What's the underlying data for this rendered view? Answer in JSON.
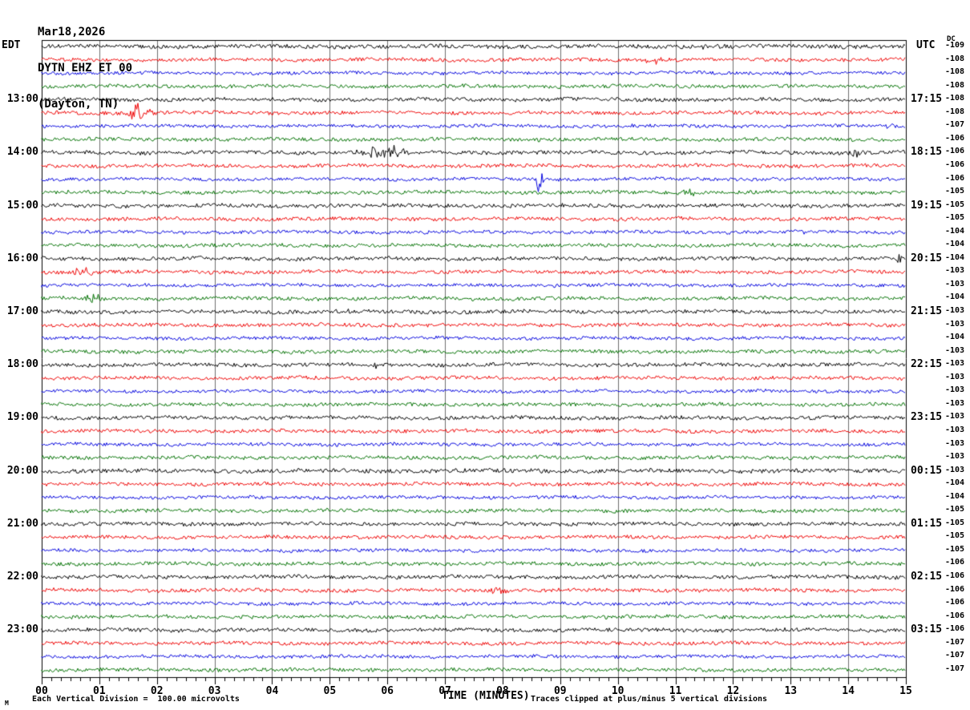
{
  "header": {
    "date": "Mar18,2026",
    "station": "DYTN EHZ ET 00",
    "location": "(Dayton, TN)"
  },
  "axes": {
    "left_tz": "EDT",
    "right_tz": "UTC",
    "dc_header": "DC",
    "xlabel": "TIME (MINUTES)",
    "x_ticks": [
      "00",
      "01",
      "02",
      "03",
      "04",
      "05",
      "06",
      "07",
      "08",
      "09",
      "10",
      "11",
      "12",
      "13",
      "14",
      "15"
    ]
  },
  "footer": {
    "scale_note": "Each Vertical Division =  100.00 microvolts",
    "clip_note": "Traces clipped at plus/minus 5 vertical divisions",
    "watermark": "M"
  },
  "colors": {
    "trace_cycle": [
      "#000000",
      "#ee0000",
      "#0000dd",
      "#007100"
    ],
    "grid": "#6e6e6e",
    "border": "#000000",
    "background": "#ffffff",
    "text": "#000000"
  },
  "chart_data": {
    "type": "line",
    "subtype": "helicorder-seismogram",
    "title": "DYTN EHZ ET 00 (Dayton, TN) Mar18,2026",
    "xlabel": "TIME (MINUTES)",
    "x_range_minutes": [
      0,
      15
    ],
    "minutes_per_row": 15,
    "rows_total": 48,
    "traces_per_hour": 4,
    "trace_color_cycle": [
      "black",
      "red",
      "blue",
      "green"
    ],
    "grid": "vertical lines at every minute",
    "left_time_labels": [
      {
        "row": 5,
        "label": "13:00"
      },
      {
        "row": 9,
        "label": "14:00"
      },
      {
        "row": 13,
        "label": "15:00"
      },
      {
        "row": 17,
        "label": "16:00"
      },
      {
        "row": 21,
        "label": "17:00"
      },
      {
        "row": 25,
        "label": "18:00"
      },
      {
        "row": 29,
        "label": "19:00"
      },
      {
        "row": 33,
        "label": "20:00"
      },
      {
        "row": 37,
        "label": "21:00"
      },
      {
        "row": 41,
        "label": "22:00"
      },
      {
        "row": 45,
        "label": "23:00"
      }
    ],
    "right_time_labels": [
      {
        "row": 5,
        "label": "17:15"
      },
      {
        "row": 9,
        "label": "18:15"
      },
      {
        "row": 13,
        "label": "19:15"
      },
      {
        "row": 17,
        "label": "20:15"
      },
      {
        "row": 21,
        "label": "21:15"
      },
      {
        "row": 25,
        "label": "22:15"
      },
      {
        "row": 29,
        "label": "23:15"
      },
      {
        "row": 33,
        "label": "00:15"
      },
      {
        "row": 37,
        "label": "01:15"
      },
      {
        "row": 41,
        "label": "02:15"
      },
      {
        "row": 45,
        "label": "03:15"
      }
    ],
    "rows": [
      {
        "dc": -109,
        "noise": 2.4,
        "ev": [
          [
            11.55,
            0.45,
            3.5
          ]
        ]
      },
      {
        "dc": -108,
        "noise": 2.2,
        "ev": [
          [
            10.6,
            0.35,
            4.5
          ]
        ]
      },
      {
        "dc": -108,
        "noise": 2.0,
        "ev": []
      },
      {
        "dc": -108,
        "noise": 2.2,
        "ev": []
      },
      {
        "dc": -108,
        "noise": 2.3,
        "ev": []
      },
      {
        "dc": -108,
        "noise": 2.2,
        "ev": [
          [
            1.65,
            0.16,
            26
          ],
          [
            1.95,
            0.2,
            5
          ]
        ]
      },
      {
        "dc": -107,
        "noise": 2.0,
        "ev": [
          [
            10.3,
            0.2,
            3
          ],
          [
            14.7,
            0.12,
            5
          ]
        ]
      },
      {
        "dc": -106,
        "noise": 2.2,
        "ev": []
      },
      {
        "dc": -106,
        "noise": 2.3,
        "ev": [
          [
            5.95,
            0.65,
            9
          ],
          [
            14.15,
            0.18,
            6
          ]
        ]
      },
      {
        "dc": -106,
        "noise": 2.2,
        "ev": []
      },
      {
        "dc": -106,
        "noise": 2.0,
        "ev": [
          [
            8.63,
            0.1,
            20
          ]
        ]
      },
      {
        "dc": -105,
        "noise": 2.2,
        "ev": [
          [
            11.25,
            0.25,
            5.5
          ]
        ]
      },
      {
        "dc": -105,
        "noise": 2.3,
        "ev": []
      },
      {
        "dc": -105,
        "noise": 2.2,
        "ev": []
      },
      {
        "dc": -104,
        "noise": 2.0,
        "ev": [
          [
            13.3,
            0.18,
            4
          ]
        ]
      },
      {
        "dc": -104,
        "noise": 2.2,
        "ev": []
      },
      {
        "dc": -104,
        "noise": 2.3,
        "ev": [
          [
            14.85,
            0.2,
            5.5
          ]
        ]
      },
      {
        "dc": -103,
        "noise": 2.2,
        "ev": [
          [
            0.75,
            0.35,
            7
          ]
        ]
      },
      {
        "dc": -103,
        "noise": 2.0,
        "ev": []
      },
      {
        "dc": -104,
        "noise": 2.2,
        "ev": [
          [
            0.9,
            0.35,
            6
          ]
        ]
      },
      {
        "dc": -103,
        "noise": 2.3,
        "ev": [
          [
            5.27,
            0.1,
            5
          ]
        ]
      },
      {
        "dc": -103,
        "noise": 2.2,
        "ev": []
      },
      {
        "dc": -104,
        "noise": 2.0,
        "ev": []
      },
      {
        "dc": -103,
        "noise": 2.2,
        "ev": []
      },
      {
        "dc": -103,
        "noise": 2.3,
        "ev": [
          [
            5.8,
            0.06,
            5
          ]
        ]
      },
      {
        "dc": -103,
        "noise": 2.2,
        "ev": []
      },
      {
        "dc": -103,
        "noise": 2.0,
        "ev": []
      },
      {
        "dc": -103,
        "noise": 2.2,
        "ev": []
      },
      {
        "dc": -103,
        "noise": 2.3,
        "ev": []
      },
      {
        "dc": -103,
        "noise": 2.2,
        "ev": []
      },
      {
        "dc": -103,
        "noise": 2.0,
        "ev": []
      },
      {
        "dc": -103,
        "noise": 2.2,
        "ev": []
      },
      {
        "dc": -103,
        "noise": 2.6,
        "ev": []
      },
      {
        "dc": -104,
        "noise": 2.2,
        "ev": []
      },
      {
        "dc": -104,
        "noise": 2.0,
        "ev": []
      },
      {
        "dc": -105,
        "noise": 2.2,
        "ev": []
      },
      {
        "dc": -105,
        "noise": 2.3,
        "ev": []
      },
      {
        "dc": -105,
        "noise": 2.2,
        "ev": []
      },
      {
        "dc": -105,
        "noise": 2.0,
        "ev": []
      },
      {
        "dc": -106,
        "noise": 2.2,
        "ev": []
      },
      {
        "dc": -106,
        "noise": 2.3,
        "ev": []
      },
      {
        "dc": -106,
        "noise": 2.2,
        "ev": [
          [
            7.9,
            0.35,
            3.5
          ]
        ]
      },
      {
        "dc": -106,
        "noise": 2.0,
        "ev": []
      },
      {
        "dc": -106,
        "noise": 2.2,
        "ev": []
      },
      {
        "dc": -106,
        "noise": 2.3,
        "ev": []
      },
      {
        "dc": -107,
        "noise": 2.2,
        "ev": []
      },
      {
        "dc": -107,
        "noise": 2.0,
        "ev": []
      },
      {
        "dc": -107,
        "noise": 2.2,
        "ev": []
      }
    ],
    "scale_note": "Each Vertical Division =  100.00 microvolts",
    "clip_note": "Traces clipped at plus/minus 5 vertical divisions"
  }
}
